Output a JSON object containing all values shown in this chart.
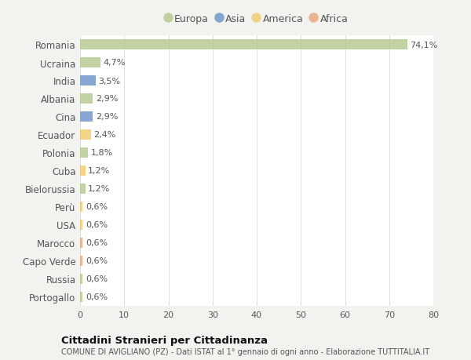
{
  "countries": [
    "Romania",
    "Ucraina",
    "India",
    "Albania",
    "Cina",
    "Ecuador",
    "Polonia",
    "Cuba",
    "Bielorussia",
    "Perù",
    "USA",
    "Marocco",
    "Capo Verde",
    "Russia",
    "Portogallo"
  ],
  "values": [
    74.1,
    4.7,
    3.5,
    2.9,
    2.9,
    2.4,
    1.8,
    1.2,
    1.2,
    0.6,
    0.6,
    0.6,
    0.6,
    0.6,
    0.6
  ],
  "labels": [
    "74,1%",
    "4,7%",
    "3,5%",
    "2,9%",
    "2,9%",
    "2,4%",
    "1,8%",
    "1,2%",
    "1,2%",
    "0,6%",
    "0,6%",
    "0,6%",
    "0,6%",
    "0,6%",
    "0,6%"
  ],
  "continents": [
    "Europa",
    "Europa",
    "Asia",
    "Europa",
    "Asia",
    "America",
    "Europa",
    "America",
    "Europa",
    "America",
    "America",
    "Africa",
    "Africa",
    "Europa",
    "Europa"
  ],
  "colors": {
    "Europa": "#b5c98e",
    "Asia": "#6b95c8",
    "America": "#f2cb6e",
    "Africa": "#e8a87c"
  },
  "background_color": "#f2f2ee",
  "plot_bg_color": "#ffffff",
  "xlim": [
    0,
    80
  ],
  "xticks": [
    0,
    10,
    20,
    30,
    40,
    50,
    60,
    70,
    80
  ],
  "title": "Cittadini Stranieri per Cittadinanza",
  "subtitle": "COMUNE DI AVIGLIANO (PZ) - Dati ISTAT al 1° gennaio di ogni anno - Elaborazione TUTTITALIA.IT",
  "grid_color": "#dddddd",
  "text_color": "#555555",
  "bar_alpha": 0.82,
  "legend_order": [
    "Europa",
    "Asia",
    "America",
    "Africa"
  ],
  "legend_circle_colors": {
    "Europa": "#b5c98e",
    "Asia": "#6b95c8",
    "America": "#f2cb6e",
    "Africa": "#e8a87c"
  }
}
